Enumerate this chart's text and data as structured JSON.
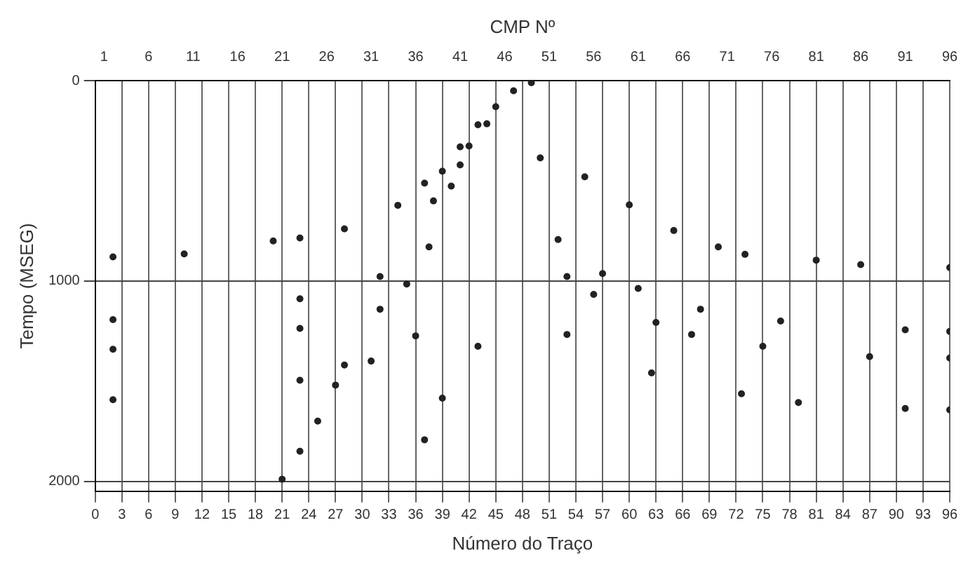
{
  "chart_data": {
    "type": "scatter",
    "x2label": "CMP Nº",
    "xlabel": "Número do Traço",
    "ylabel": "Tempo (MSEG)",
    "xlim": [
      0,
      96
    ],
    "xticks": [
      0,
      3,
      6,
      9,
      12,
      15,
      18,
      21,
      24,
      27,
      30,
      33,
      36,
      39,
      42,
      45,
      48,
      51,
      54,
      57,
      60,
      63,
      66,
      69,
      72,
      75,
      78,
      81,
      84,
      87,
      90,
      93,
      96
    ],
    "x2lim": [
      0,
      96
    ],
    "x2ticks": [
      1,
      6,
      11,
      16,
      21,
      26,
      31,
      36,
      41,
      46,
      51,
      56,
      61,
      66,
      71,
      76,
      81,
      86,
      91,
      96
    ],
    "ylim": [
      2050,
      0
    ],
    "yticks": [
      0,
      1000,
      2000
    ],
    "grid": true,
    "legend": false,
    "marker": "circle",
    "series": [
      {
        "color": "#222222",
        "x": [
          2,
          10,
          20,
          23,
          28,
          34,
          37,
          39
        ],
        "values": [
          880,
          865,
          800,
          785,
          740,
          622,
          511,
          452
        ]
      },
      {
        "color": "#222222",
        "x": [
          2,
          23,
          32,
          37.5
        ],
        "values": [
          1193,
          1089,
          978,
          830
        ]
      },
      {
        "color": "#222222",
        "x": [
          2,
          23,
          32,
          35
        ],
        "values": [
          1341,
          1237,
          1141,
          1015
        ]
      },
      {
        "color": "#222222",
        "x": [
          2,
          23,
          31,
          36
        ],
        "values": [
          1593,
          1496,
          1400,
          1274
        ]
      },
      {
        "color": "#222222",
        "x": [
          21,
          23,
          25,
          27,
          28
        ],
        "values": [
          1990,
          1850,
          1700,
          1520,
          1420
        ]
      },
      {
        "color": "#222222",
        "x": [
          37,
          39,
          43
        ],
        "values": [
          1793,
          1585,
          1326
        ]
      },
      {
        "color": "#222222",
        "x": [
          41,
          43,
          45,
          47,
          49
        ],
        "values": [
          330,
          220,
          130,
          50,
          10
        ]
      },
      {
        "color": "#222222",
        "x": [
          38,
          40,
          41,
          42,
          44
        ],
        "values": [
          600,
          526,
          420,
          326,
          215
        ]
      },
      {
        "color": "#222222",
        "x": [
          50,
          55,
          60,
          65,
          70,
          73,
          81,
          86,
          96
        ],
        "values": [
          385,
          480,
          620,
          748,
          830,
          867,
          896,
          918,
          933
        ]
      },
      {
        "color": "#222222",
        "x": [
          52,
          57,
          61,
          68,
          77,
          91,
          96
        ],
        "values": [
          793,
          963,
          1037,
          1141,
          1200,
          1244,
          1252
        ]
      },
      {
        "color": "#222222",
        "x": [
          53,
          56,
          63,
          67,
          75,
          87,
          96
        ],
        "values": [
          978,
          1067,
          1207,
          1267,
          1326,
          1378,
          1385
        ]
      },
      {
        "color": "#222222",
        "x": [
          53,
          62.5,
          72.6,
          79,
          91,
          96
        ],
        "values": [
          1267,
          1459,
          1563,
          1607,
          1637,
          1644
        ]
      }
    ]
  }
}
